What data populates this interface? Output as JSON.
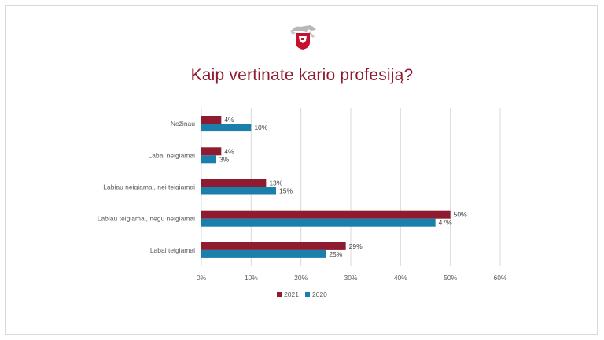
{
  "colors": {
    "series_2021": "#8e1b2f",
    "series_2020": "#1a7fab",
    "title": "#8e1b2f",
    "grid": "#d9d9d9"
  },
  "logo_icon": "coat-of-arms-vytis-icon",
  "chart_data": {
    "type": "bar",
    "orientation": "horizontal",
    "title": "Kaip vertinate kario profesiją?",
    "categories": [
      "Nežinau",
      "Labai neigiamai",
      "Labiau neigiamai, nei teigiamai",
      "Labiau teigiamai, negu neigiamai",
      "Labai teigiamai"
    ],
    "series": [
      {
        "name": "2021",
        "values": [
          4,
          4,
          13,
          50,
          29
        ],
        "labels": [
          "4%",
          "4%",
          "13%",
          "50%",
          "29%"
        ]
      },
      {
        "name": "2020",
        "values": [
          10,
          3,
          15,
          47,
          25
        ],
        "labels": [
          "10%",
          "3%",
          "15%",
          "47%",
          "25%"
        ]
      }
    ],
    "xlim": [
      0,
      60
    ],
    "xticks": [
      "0%",
      "10%",
      "20%",
      "30%",
      "40%",
      "50%",
      "60%"
    ],
    "grid": true,
    "legend_position": "bottom"
  }
}
